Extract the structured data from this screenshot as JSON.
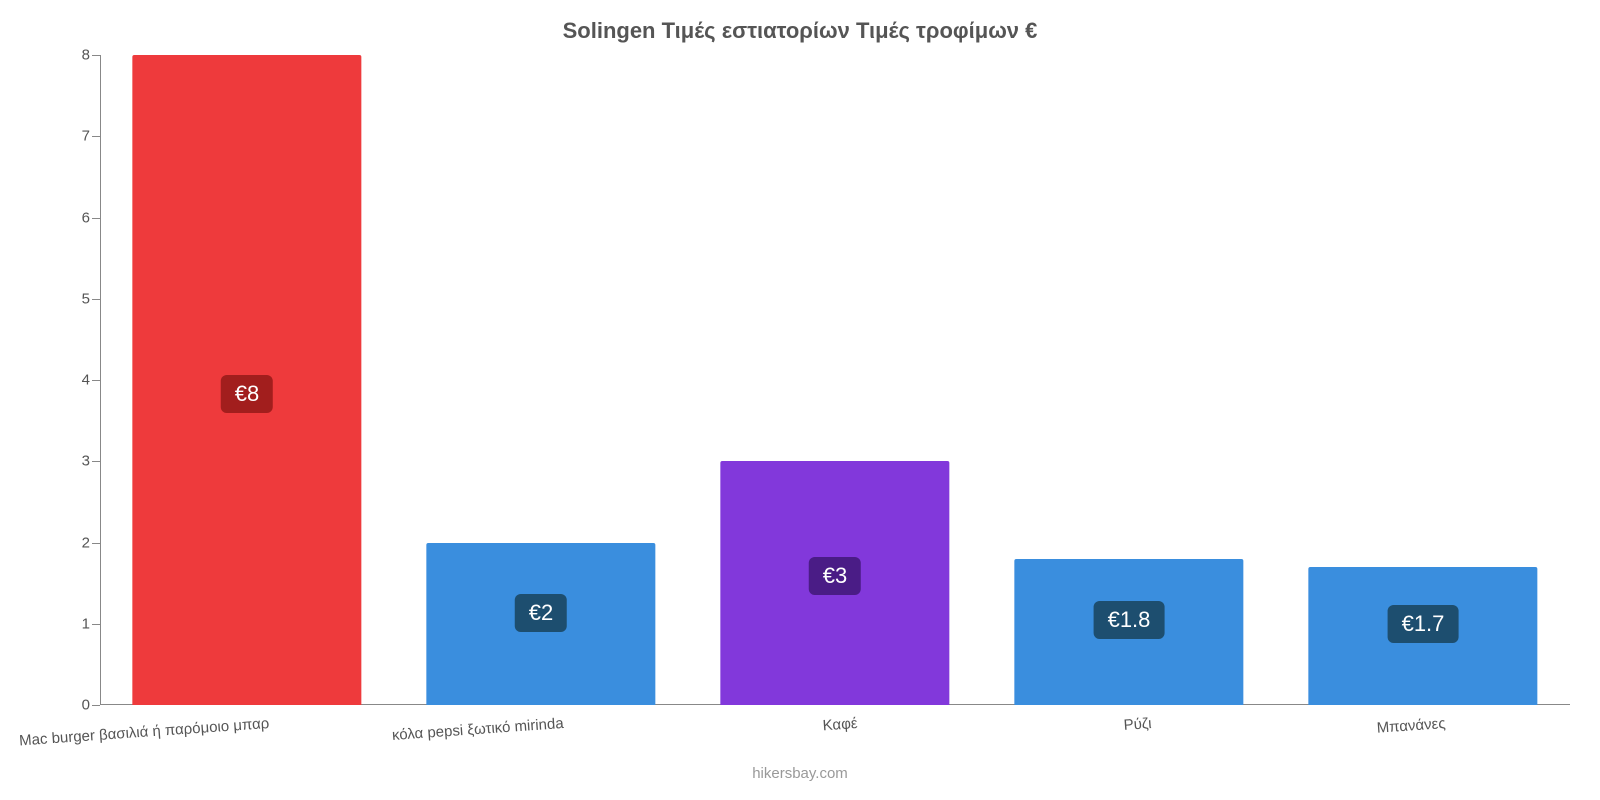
{
  "chart": {
    "type": "bar",
    "title": "Solingen Τιμές εστιατορίων Τιμές τροφίμων €",
    "title_color": "#555555",
    "title_fontsize": 22,
    "background_color": "#ffffff",
    "axis_color": "#888888",
    "tick_label_color": "#555555",
    "tick_fontsize": 15,
    "ylim": [
      0,
      8
    ],
    "ytick_step": 1,
    "yticks": [
      0,
      1,
      2,
      3,
      4,
      5,
      6,
      7,
      8
    ],
    "bar_width_ratio": 0.78,
    "value_label_fontsize": 22,
    "value_label_text_color": "#ffffff",
    "categories": [
      "Mac burger βασιλιά ή παρόμοιο μπαρ",
      "κόλα pepsi ξωτικό mirinda",
      "Καφέ",
      "Ρύζι",
      "Μπανάνες"
    ],
    "values": [
      8,
      2,
      3,
      1.8,
      1.7
    ],
    "value_labels": [
      "€8",
      "€2",
      "€3",
      "€1.8",
      "€1.7"
    ],
    "bar_colors": [
      "#ee3a3c",
      "#3a8ede",
      "#8238db",
      "#3a8ede",
      "#3a8ede"
    ],
    "badge_colors": [
      "#a21e1d",
      "#1d4e6f",
      "#4a1c86",
      "#1d4e6f",
      "#1d4e6f"
    ]
  },
  "attribution": "hikersbay.com",
  "attribution_color": "#999999"
}
